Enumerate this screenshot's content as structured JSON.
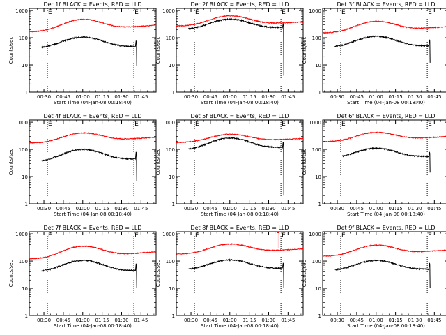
{
  "colors": {
    "events": "#000000",
    "lld": "#ff0000",
    "axis": "#000000",
    "background": "#ffffff"
  },
  "common": {
    "xlabel": "Start Time (04-Jan-08 00:18:40)",
    "ylabel": "Counts/sec",
    "x_ticks": [
      "00:30",
      "00:45",
      "01:00",
      "01:15",
      "01:30",
      "01:45"
    ],
    "y_ticks": [
      "1",
      "10",
      "100",
      "1000"
    ],
    "start_marker": "E",
    "end_marker": "E"
  },
  "chart_data": [
    {
      "type": "line",
      "title": "Det 1f BLACK = Events, RED = LLD",
      "yscale": "log",
      "ylim": [
        1,
        1200
      ],
      "xlim": [
        "00:18:40",
        "01:56:40"
      ],
      "grid": false,
      "event_start": "00:32:40",
      "event_end": "01:39:30",
      "series": [
        {
          "name": "BLACK = Events",
          "x_start": "00:28:00",
          "x_end": "01:42:00",
          "baseline": 42,
          "peak": 105,
          "end": 48,
          "spike": 78,
          "drop": 9
        },
        {
          "name": "RED = LLD",
          "x_start": "00:18:40",
          "x_end": "01:56:40",
          "baseline": 165,
          "peak": 470,
          "end": 290
        }
      ]
    },
    {
      "type": "line",
      "title": "Det 2f BLACK = Events, RED = LLD",
      "yscale": "log",
      "ylim": [
        1,
        1200
      ],
      "xlim": [
        "00:18:40",
        "01:56:40"
      ],
      "grid": false,
      "event_start": "00:32:40",
      "event_end": "01:39:30",
      "series": [
        {
          "name": "BLACK = Events",
          "x_start": "00:28:00",
          "x_end": "01:42:00",
          "baseline": 200,
          "peak": 480,
          "end": 240,
          "spike": 330,
          "drop": 4
        },
        {
          "name": "RED = LLD",
          "x_start": "00:18:40",
          "x_end": "01:56:40",
          "baseline": 270,
          "peak": 640,
          "end": 380
        }
      ]
    },
    {
      "type": "line",
      "title": "Det 3f BLACK = Events, RED = LLD",
      "yscale": "log",
      "ylim": [
        1,
        1200
      ],
      "xlim": [
        "00:18:40",
        "01:56:40"
      ],
      "grid": false,
      "event_start": "00:32:40",
      "event_end": "01:39:30",
      "series": [
        {
          "name": "BLACK = Events",
          "x_start": "00:28:00",
          "x_end": "01:42:00",
          "baseline": 45,
          "peak": 112,
          "end": 50,
          "spike": 85,
          "drop": 12
        },
        {
          "name": "RED = LLD",
          "x_start": "00:18:40",
          "x_end": "01:56:40",
          "baseline": 150,
          "peak": 400,
          "end": 260
        }
      ]
    },
    {
      "type": "line",
      "title": "Det 4f BLACK = Events, RED = LLD",
      "yscale": "log",
      "ylim": [
        1,
        1200
      ],
      "xlim": [
        "00:18:40",
        "01:56:40"
      ],
      "grid": false,
      "event_start": "00:32:40",
      "event_end": "01:39:30",
      "series": [
        {
          "name": "BLACK = Events",
          "x_start": "00:28:00",
          "x_end": "01:42:00",
          "baseline": 35,
          "peak": 100,
          "end": 45,
          "spike": 80,
          "drop": 7
        },
        {
          "name": "RED = LLD",
          "x_start": "00:18:40",
          "x_end": "01:56:40",
          "baseline": 170,
          "peak": 400,
          "end": 280
        }
      ]
    },
    {
      "type": "line",
      "title": "Det 5f BLACK = Events, RED = LLD",
      "yscale": "log",
      "ylim": [
        1,
        1200
      ],
      "xlim": [
        "00:18:40",
        "01:56:40"
      ],
      "grid": false,
      "event_start": "00:32:40",
      "event_end": "01:39:30",
      "series": [
        {
          "name": "BLACK = Events",
          "x_start": "00:28:00",
          "x_end": "01:42:00",
          "baseline": 95,
          "peak": 260,
          "end": 120,
          "spike": 190,
          "drop": 2
        },
        {
          "name": "RED = LLD",
          "x_start": "00:18:40",
          "x_end": "01:56:40",
          "baseline": 180,
          "peak": 360,
          "end": 250
        }
      ]
    },
    {
      "type": "line",
      "title": "Det 6f BLACK = Events, RED = LLD",
      "yscale": "log",
      "ylim": [
        1,
        1200
      ],
      "xlim": [
        "00:18:40",
        "01:56:40"
      ],
      "grid": false,
      "event_start": "00:32:40",
      "event_end": "01:39:30",
      "series": [
        {
          "name": "BLACK = Events",
          "x_start": "00:34:00",
          "x_end": "01:42:00",
          "baseline": 48,
          "peak": 110,
          "end": 55,
          "spike": 80,
          "drop": 14
        },
        {
          "name": "RED = LLD",
          "x_start": "00:18:40",
          "x_end": "01:56:40",
          "baseline": 190,
          "peak": 420,
          "end": 300
        }
      ]
    },
    {
      "type": "line",
      "title": "Det 7f BLACK = Events, RED = LLD",
      "yscale": "log",
      "ylim": [
        1,
        1200
      ],
      "xlim": [
        "00:18:40",
        "01:56:40"
      ],
      "grid": false,
      "event_start": "00:32:40",
      "event_end": "01:39:30",
      "series": [
        {
          "name": "BLACK = Events",
          "x_start": "00:28:00",
          "x_end": "01:42:00",
          "baseline": 40,
          "peak": 105,
          "end": 45,
          "spike": 80,
          "drop": 10
        },
        {
          "name": "RED = LLD",
          "x_start": "00:18:40",
          "x_end": "01:56:40",
          "baseline": 120,
          "peak": 350,
          "end": 220
        }
      ]
    },
    {
      "type": "line",
      "title": "Det 8f BLACK = Events, RED = LLD",
      "yscale": "log",
      "ylim": [
        1,
        1200
      ],
      "xlim": [
        "00:18:40",
        "01:56:40"
      ],
      "grid": false,
      "event_start": "00:32:40",
      "event_end": "01:39:30",
      "series": [
        {
          "name": "BLACK = Events",
          "x_start": "00:28:00",
          "x_end": "01:42:00",
          "baseline": 48,
          "peak": 110,
          "end": 55,
          "spike": 85,
          "drop": 10
        },
        {
          "name": "RED = LLD",
          "x_start": "00:18:40",
          "x_end": "01:56:40",
          "baseline": 180,
          "peak": 420,
          "end": 280,
          "burst": 1100
        }
      ]
    },
    {
      "type": "line",
      "title": "Det 9f BLACK = Events, RED = LLD",
      "yscale": "log",
      "ylim": [
        1,
        1200
      ],
      "xlim": [
        "00:18:40",
        "01:56:40"
      ],
      "grid": false,
      "event_start": "00:32:40",
      "event_end": "01:39:30",
      "series": [
        {
          "name": "BLACK = Events",
          "x_start": "00:28:00",
          "x_end": "01:42:00",
          "baseline": 45,
          "peak": 105,
          "end": 50,
          "spike": 85,
          "drop": 10
        },
        {
          "name": "RED = LLD",
          "x_start": "00:18:40",
          "x_end": "01:56:40",
          "baseline": 150,
          "peak": 380,
          "end": 260
        }
      ]
    }
  ]
}
